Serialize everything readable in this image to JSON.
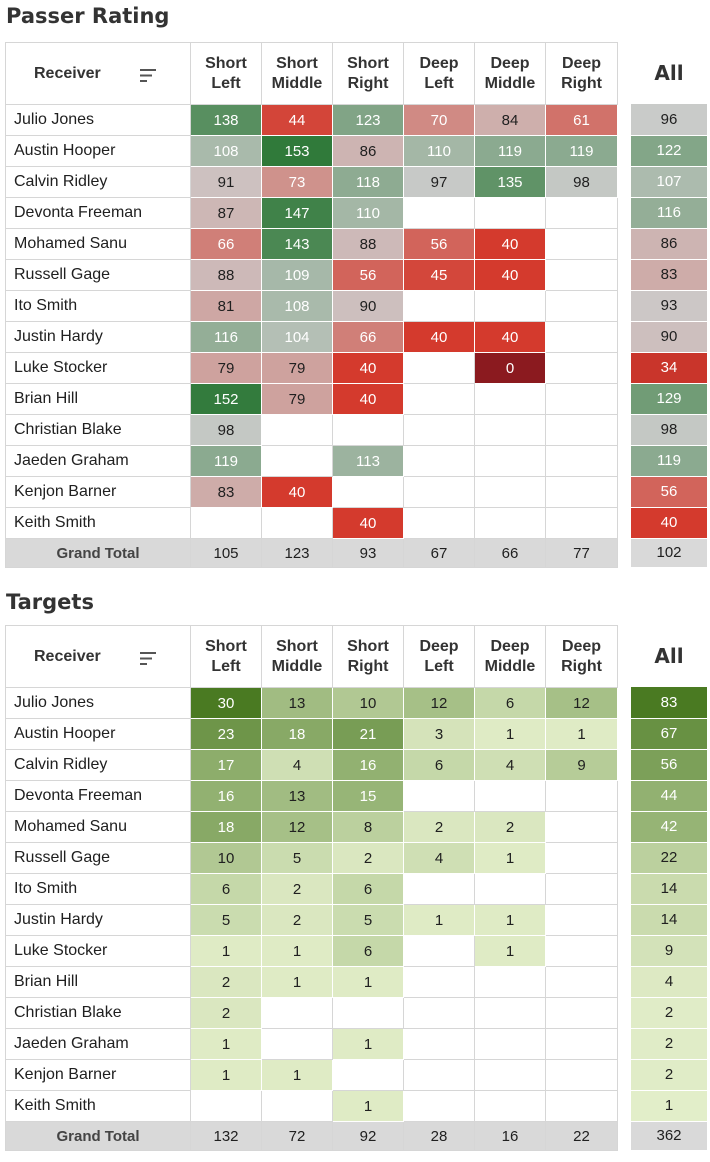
{
  "palette": {
    "rating_low": "#8b1a1f",
    "rating_mid_low": "#d43a2d",
    "rating_neutral": "#cccccc",
    "rating_high": "#307a3a",
    "targets_low": "#e4efcb",
    "targets_high": "#4a7a22",
    "total_row": "#d9d9d9"
  },
  "header": {
    "receiver": "Receiver",
    "sort_icon": "sort-icon",
    "columns": [
      "Short\nLeft",
      "Short\nMiddle",
      "Short\nRight",
      "Deep\nLeft",
      "Deep\nMiddle",
      "Deep\nRight"
    ],
    "all": "All"
  },
  "chart_data": [
    {
      "type": "heatmap",
      "title": "Passer Rating",
      "row_header": "Receiver",
      "columns": [
        "Short Left",
        "Short Middle",
        "Short Right",
        "Deep Left",
        "Deep Middle",
        "Deep Right"
      ],
      "all_label": "All",
      "rows": [
        {
          "receiver": "Julio Jones",
          "values": [
            138,
            44,
            123,
            70,
            84,
            61
          ],
          "all": 96
        },
        {
          "receiver": "Austin Hooper",
          "values": [
            108,
            153,
            86,
            110,
            119,
            119
          ],
          "all": 122
        },
        {
          "receiver": "Calvin Ridley",
          "values": [
            91,
            73,
            118,
            97,
            135,
            98
          ],
          "all": 107
        },
        {
          "receiver": "Devonta Freeman",
          "values": [
            87,
            147,
            110,
            null,
            null,
            null
          ],
          "all": 116
        },
        {
          "receiver": "Mohamed Sanu",
          "values": [
            66,
            143,
            88,
            56,
            40,
            null
          ],
          "all": 86
        },
        {
          "receiver": "Russell Gage",
          "values": [
            88,
            109,
            56,
            45,
            40,
            null
          ],
          "all": 83
        },
        {
          "receiver": "Ito Smith",
          "values": [
            81,
            108,
            90,
            null,
            null,
            null
          ],
          "all": 93
        },
        {
          "receiver": "Justin Hardy",
          "values": [
            116,
            104,
            66,
            40,
            40,
            null
          ],
          "all": 90
        },
        {
          "receiver": "Luke Stocker",
          "values": [
            79,
            79,
            40,
            null,
            0,
            null
          ],
          "all": 34
        },
        {
          "receiver": "Brian Hill",
          "values": [
            152,
            79,
            40,
            null,
            null,
            null
          ],
          "all": 129
        },
        {
          "receiver": "Christian Blake",
          "values": [
            98,
            null,
            null,
            null,
            null,
            null
          ],
          "all": 98
        },
        {
          "receiver": "Jaeden Graham",
          "values": [
            119,
            null,
            113,
            null,
            null,
            null
          ],
          "all": 119
        },
        {
          "receiver": "Kenjon Barner",
          "values": [
            83,
            40,
            null,
            null,
            null,
            null
          ],
          "all": 56
        },
        {
          "receiver": "Keith Smith",
          "values": [
            null,
            null,
            40,
            null,
            null,
            null
          ],
          "all": 40
        }
      ],
      "total": {
        "label": "Grand Total",
        "values": [
          105,
          123,
          93,
          67,
          66,
          77
        ],
        "all": 102
      }
    },
    {
      "type": "heatmap",
      "title": "Targets",
      "row_header": "Receiver",
      "columns": [
        "Short Left",
        "Short Middle",
        "Short Right",
        "Deep Left",
        "Deep Middle",
        "Deep Right"
      ],
      "all_label": "All",
      "rows": [
        {
          "receiver": "Julio Jones",
          "values": [
            30,
            13,
            10,
            12,
            6,
            12
          ],
          "all": 83
        },
        {
          "receiver": "Austin Hooper",
          "values": [
            23,
            18,
            21,
            3,
            1,
            1
          ],
          "all": 67
        },
        {
          "receiver": "Calvin Ridley",
          "values": [
            17,
            4,
            16,
            6,
            4,
            9
          ],
          "all": 56
        },
        {
          "receiver": "Devonta Freeman",
          "values": [
            16,
            13,
            15,
            null,
            null,
            null
          ],
          "all": 44
        },
        {
          "receiver": "Mohamed Sanu",
          "values": [
            18,
            12,
            8,
            2,
            2,
            null
          ],
          "all": 42
        },
        {
          "receiver": "Russell Gage",
          "values": [
            10,
            5,
            2,
            4,
            1,
            null
          ],
          "all": 22
        },
        {
          "receiver": "Ito Smith",
          "values": [
            6,
            2,
            6,
            null,
            null,
            null
          ],
          "all": 14
        },
        {
          "receiver": "Justin Hardy",
          "values": [
            5,
            2,
            5,
            1,
            1,
            null
          ],
          "all": 14
        },
        {
          "receiver": "Luke Stocker",
          "values": [
            1,
            1,
            6,
            null,
            1,
            null
          ],
          "all": 9
        },
        {
          "receiver": "Brian Hill",
          "values": [
            2,
            1,
            1,
            null,
            null,
            null
          ],
          "all": 4
        },
        {
          "receiver": "Christian Blake",
          "values": [
            2,
            null,
            null,
            null,
            null,
            null
          ],
          "all": 2
        },
        {
          "receiver": "Jaeden Graham",
          "values": [
            1,
            null,
            1,
            null,
            null,
            null
          ],
          "all": 2
        },
        {
          "receiver": "Kenjon Barner",
          "values": [
            1,
            1,
            null,
            null,
            null,
            null
          ],
          "all": 2
        },
        {
          "receiver": "Keith Smith",
          "values": [
            null,
            null,
            1,
            null,
            null,
            null
          ],
          "all": 1
        }
      ],
      "total": {
        "label": "Grand Total",
        "values": [
          132,
          72,
          92,
          28,
          16,
          22
        ],
        "all": 362
      }
    }
  ]
}
